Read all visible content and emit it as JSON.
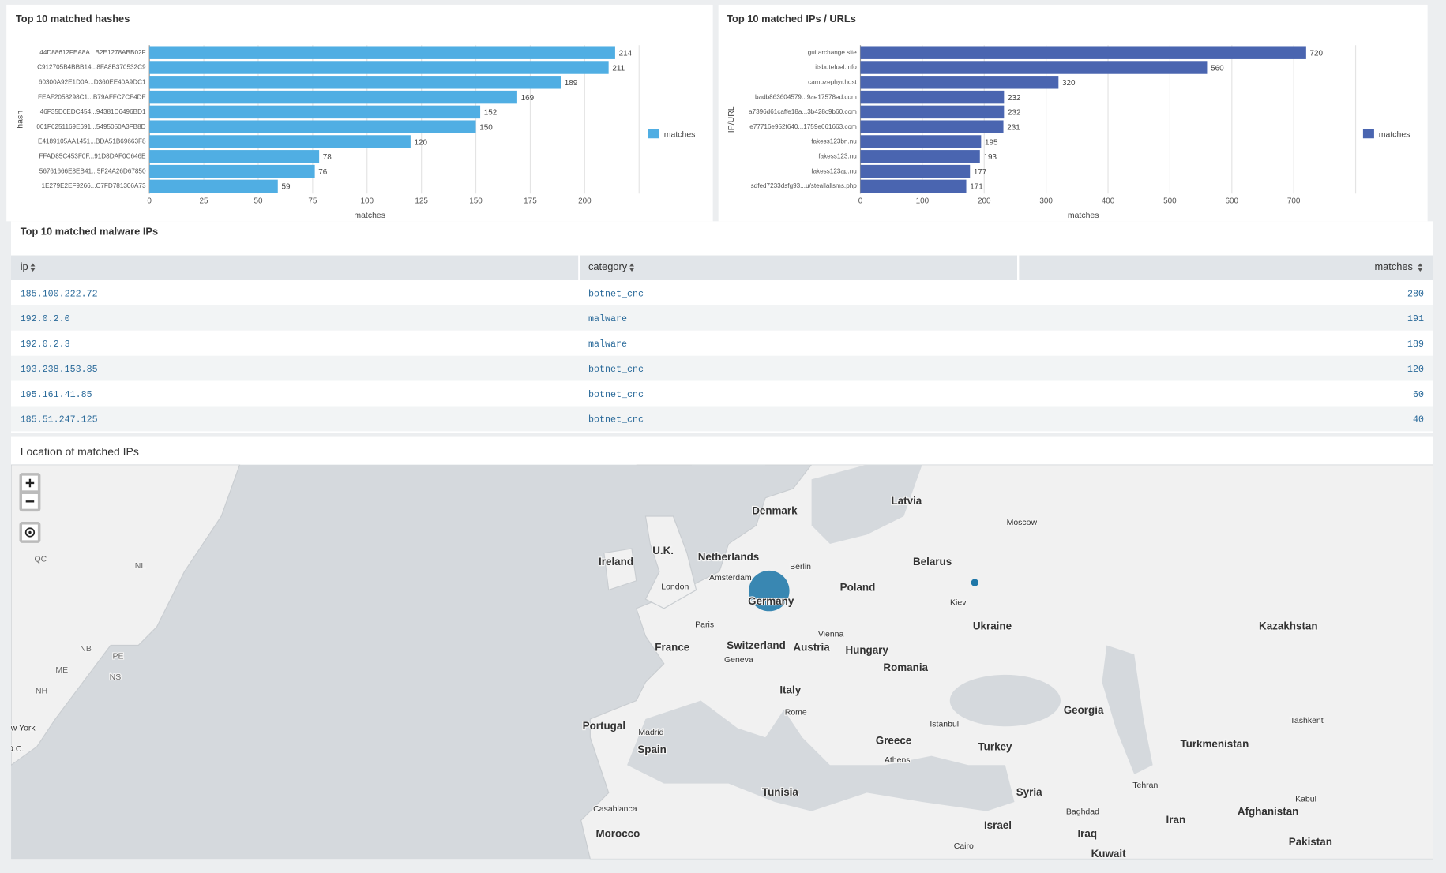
{
  "chart_data": [
    {
      "type": "bar",
      "orientation": "horizontal",
      "title": "Top 10 matched hashes",
      "categories": [
        "44D88612FEA8A...B2E1278ABB02F",
        "C912705B4BBB14...8FA8B370532C9",
        "60300A92E1D0A...D360EE40A9DC1",
        "FEAF2058298C1...B79AFFC7CF4DF",
        "46F35D0EDC454...94381D6496BD1",
        "001F6251169E691...5495050A3FB8D",
        "E4189105AA1451...BDA51B69663F8",
        "FFAD85C453F0F...91D8DAF0C646E",
        "56761666E8EB41...5F24A26D67850",
        "1E279E2EF9266...C7FD781306A73"
      ],
      "series": [
        {
          "name": "matches",
          "color": "#50aee3",
          "values": [
            214,
            211,
            189,
            169,
            152,
            150,
            120,
            78,
            76,
            59
          ]
        }
      ],
      "xlabel": "matches",
      "ylabel": "hash",
      "xlim": [
        0,
        225
      ],
      "xticks": [
        0,
        25,
        50,
        75,
        100,
        125,
        150,
        175,
        200
      ],
      "grid": true,
      "legend": "right"
    },
    {
      "type": "bar",
      "orientation": "horizontal",
      "title": "Top 10 matched IPs / URLs",
      "categories": [
        "guitarchange.site",
        "itsbutefuel.info",
        "campzephyr.host",
        "badb863604579...9ae17578ed.com",
        "a7396d61caffe18a...3b428c9b60.com",
        "e77716e952f640...1759e661663.com",
        "fakess123bn.nu",
        "fakess123.nu",
        "fakess123ap.nu",
        "sdfed7233dsfg93...u/steallallsms.php"
      ],
      "series": [
        {
          "name": "matches",
          "color": "#4a65b0",
          "values": [
            720,
            560,
            320,
            232,
            232,
            231,
            195,
            193,
            177,
            171
          ]
        }
      ],
      "xlabel": "matches",
      "ylabel": "IP/URL",
      "xlim": [
        0,
        800
      ],
      "xticks": [
        0,
        100,
        200,
        300,
        400,
        500,
        600,
        700
      ],
      "grid": true,
      "legend": "right"
    }
  ],
  "table": {
    "title": "Top 10 matched malware IPs",
    "columns": [
      "ip",
      "category",
      "matches"
    ],
    "rows": [
      [
        "185.100.222.72",
        "botnet_cnc",
        280
      ],
      [
        "192.0.2.0",
        "malware",
        191
      ],
      [
        "192.0.2.3",
        "malware",
        189
      ],
      [
        "193.238.153.85",
        "botnet_cnc",
        120
      ],
      [
        "195.161.41.85",
        "botnet_cnc",
        60
      ],
      [
        "185.51.247.125",
        "botnet_cnc",
        40
      ]
    ]
  },
  "map": {
    "title": "Location of matched IPs",
    "labels": [
      "Denmark",
      "Latvia",
      "Moscow",
      "Ireland",
      "U.K.",
      "Netherlands",
      "Berlin",
      "Belarus",
      "QC",
      "NL",
      "Amsterdam",
      "London",
      "Poland",
      "Germany",
      "Kiev",
      "Paris",
      "Ukraine",
      "Kazakhstan",
      "Vienna",
      "France",
      "Switzerland",
      "Austria",
      "Hungary",
      "Geneva",
      "NB",
      "PE",
      "ME",
      "NS",
      "Romania",
      "NH",
      "Italy",
      "Rome",
      "Georgia",
      "Tashkent",
      "Istanbul",
      "Portugal",
      "Madrid",
      "w York",
      "Greece",
      "Turkmenistan",
      "Spain",
      "D.C.",
      "Turkey",
      "Athens",
      "Tehran",
      "Tunisia",
      "Syria",
      "Kabul",
      "Casablanca",
      "Baghdad",
      "Afghanistan",
      "Iran",
      "Israel",
      "Morocco",
      "Iraq",
      "Pakistan",
      "Cairo",
      "Kuwait"
    ]
  }
}
